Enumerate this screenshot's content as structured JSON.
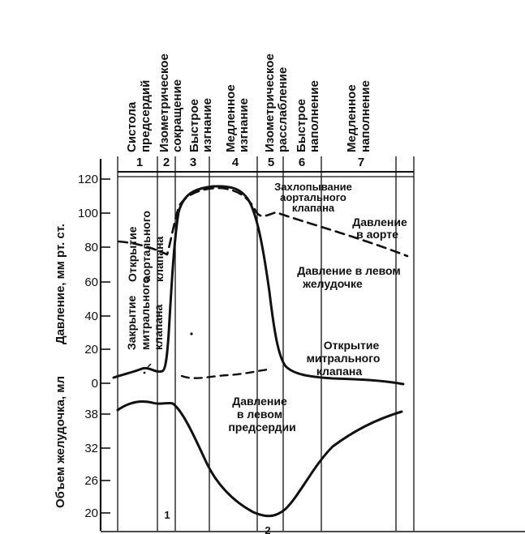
{
  "phases": [
    {
      "num": "1",
      "lines": [
        "Систола",
        "предсердий"
      ]
    },
    {
      "num": "2",
      "lines": [
        "Изометрическое",
        "сокращение"
      ]
    },
    {
      "num": "3",
      "lines": [
        "Быстрое",
        "изгнание"
      ]
    },
    {
      "num": "4",
      "lines": [
        "Медленное",
        "изгнание"
      ]
    },
    {
      "num": "5",
      "lines": [
        "Изометрическое",
        "расслабление"
      ]
    },
    {
      "num": "6",
      "lines": [
        "Быстрое",
        "наполнение"
      ]
    },
    {
      "num": "7",
      "lines": [
        "Медленное",
        "наполнение"
      ]
    }
  ],
  "y_axis": {
    "pressure_label": "Давление, мм рт. ст.",
    "volume_label": "Объем желудочка, мл",
    "pressure_ticks": [
      "120",
      "100",
      "80",
      "60",
      "40",
      "20",
      "0"
    ],
    "volume_ticks": [
      "38",
      "32",
      "26",
      "20"
    ]
  },
  "annotations": {
    "valve_close": [
      "Захлопывание",
      "аортального",
      "клапана"
    ],
    "aorta_pressure": [
      "Давление",
      "в аорте"
    ],
    "lv_pressure": [
      "Давление в левом",
      "желудочке"
    ],
    "aortic_open": [
      "Открытие",
      "аортального",
      "клапана"
    ],
    "mitral_close": [
      "Закрытие",
      "митрального",
      "клапана"
    ],
    "mitral_open": [
      "Открытие",
      "митрального",
      "клапана"
    ],
    "atrium_pressure": [
      "Давление",
      "в левом",
      "предсердии"
    ]
  },
  "bottom_marks": {
    "left": "1",
    "right": "2"
  },
  "colors": {
    "ink": "#111111",
    "background": "#ffffff"
  }
}
